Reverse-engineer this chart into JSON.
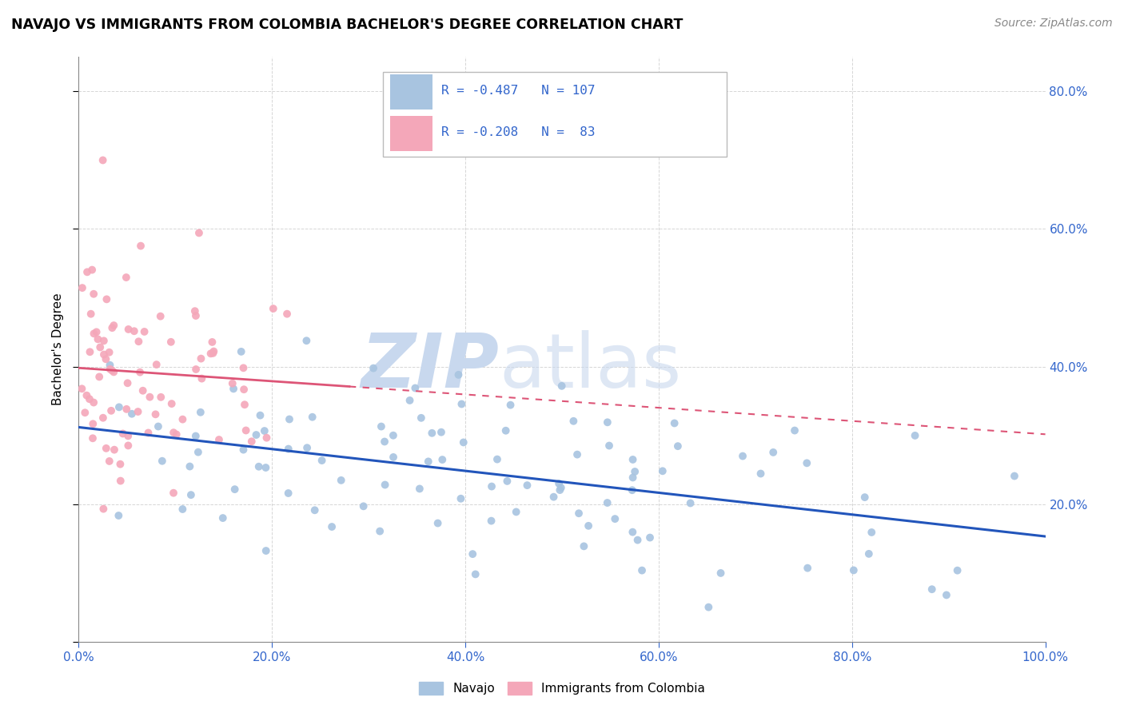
{
  "title": "NAVAJO VS IMMIGRANTS FROM COLOMBIA BACHELOR'S DEGREE CORRELATION CHART",
  "source": "Source: ZipAtlas.com",
  "ylabel": "Bachelor's Degree",
  "navajo_R": -0.487,
  "navajo_N": 107,
  "colombia_R": -0.208,
  "colombia_N": 83,
  "navajo_color": "#a8c4e0",
  "colombia_color": "#f4a7b9",
  "navajo_line_color": "#2255bb",
  "colombia_line_color": "#dd5577",
  "tick_color": "#3366cc",
  "grid_color": "#cccccc",
  "xlim": [
    0.0,
    1.0
  ],
  "ylim": [
    0.0,
    0.85
  ],
  "xticks": [
    0.0,
    0.2,
    0.4,
    0.6,
    0.8,
    1.0
  ],
  "yticks_right": [
    0.2,
    0.4,
    0.6,
    0.8
  ],
  "navajo_seed": 42,
  "colombia_seed": 99
}
